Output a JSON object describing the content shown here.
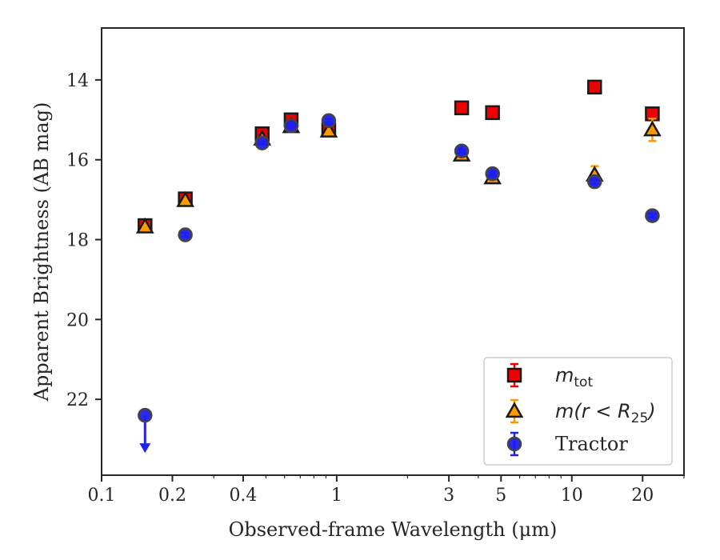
{
  "chart_data": {
    "type": "scatter",
    "xlabel": "Observed-frame Wavelength (μm)",
    "ylabel": "Apparent Brightness (AB mag)",
    "x_scale": "log",
    "xlim": [
      0.1,
      30
    ],
    "ylim": [
      12.7,
      23.9
    ],
    "y_inverted": true,
    "grid": false,
    "legend_position": "bottom-right",
    "x_ticks": [
      {
        "value": 0.1,
        "label": "0.1"
      },
      {
        "value": 0.2,
        "label": "0.2"
      },
      {
        "value": 0.4,
        "label": "0.4"
      },
      {
        "value": 1,
        "label": "1"
      },
      {
        "value": 3,
        "label": "3"
      },
      {
        "value": 5,
        "label": "5"
      },
      {
        "value": 10,
        "label": "10"
      },
      {
        "value": 20,
        "label": "20"
      }
    ],
    "y_ticks": [
      {
        "value": 14,
        "label": "14"
      },
      {
        "value": 16,
        "label": "16"
      },
      {
        "value": 18,
        "label": "18"
      },
      {
        "value": 20,
        "label": "20"
      },
      {
        "value": 22,
        "label": "22"
      }
    ],
    "series": [
      {
        "name": "m_tot",
        "legend_main": "m",
        "legend_sub": "tot",
        "marker": "square",
        "color": "#ee0000",
        "edge_color": "#1a1a1a",
        "points": [
          {
            "x": 0.153,
            "y": 17.65,
            "err": 0.08
          },
          {
            "x": 0.227,
            "y": 16.98,
            "err": 0.06
          },
          {
            "x": 0.482,
            "y": 15.35,
            "err": 0.04
          },
          {
            "x": 0.64,
            "y": 15.0,
            "err": 0.04
          },
          {
            "x": 0.925,
            "y": 15.25,
            "err": 0.04
          },
          {
            "x": 3.4,
            "y": 14.7,
            "err": 0.03
          },
          {
            "x": 4.6,
            "y": 14.82,
            "err": 0.03
          },
          {
            "x": 12.5,
            "y": 14.18,
            "err": 0.03
          },
          {
            "x": 22.0,
            "y": 14.85,
            "err": 0.05
          }
        ]
      },
      {
        "name": "m(r < R25)",
        "legend_main": "m(r < R",
        "legend_sub": "25",
        "legend_close": ")",
        "marker": "triangle",
        "color": "#ff9900",
        "edge_color": "#1a1a1a",
        "points": [
          {
            "x": 0.153,
            "y": 17.68,
            "err": 0.05
          },
          {
            "x": 0.227,
            "y": 17.02,
            "err": 0.05
          },
          {
            "x": 0.482,
            "y": 15.48,
            "err": 0.04
          },
          {
            "x": 0.64,
            "y": 15.17,
            "err": 0.04
          },
          {
            "x": 0.925,
            "y": 15.28,
            "err": 0.04
          },
          {
            "x": 3.4,
            "y": 15.88,
            "err": 0.05
          },
          {
            "x": 4.6,
            "y": 16.45,
            "err": 0.06
          },
          {
            "x": 12.5,
            "y": 16.38,
            "err": 0.22
          },
          {
            "x": 22.0,
            "y": 15.25,
            "err": 0.28
          }
        ]
      },
      {
        "name": "Tractor",
        "legend_main": "Tractor",
        "marker": "circle",
        "color": "#1f1fee",
        "edge_color": "#444444",
        "points": [
          {
            "x": 0.153,
            "y": 22.4,
            "err": 0.0,
            "upper_limit": true
          },
          {
            "x": 0.227,
            "y": 17.88,
            "err": 0.05
          },
          {
            "x": 0.482,
            "y": 15.58,
            "err": 0.04
          },
          {
            "x": 0.64,
            "y": 15.15,
            "err": 0.04
          },
          {
            "x": 0.925,
            "y": 15.02,
            "err": 0.04
          },
          {
            "x": 3.4,
            "y": 15.78,
            "err": 0.04
          },
          {
            "x": 4.6,
            "y": 16.35,
            "err": 0.05
          },
          {
            "x": 12.5,
            "y": 16.55,
            "err": 0.06
          },
          {
            "x": 22.0,
            "y": 17.4,
            "err": 0.05
          }
        ]
      }
    ]
  }
}
